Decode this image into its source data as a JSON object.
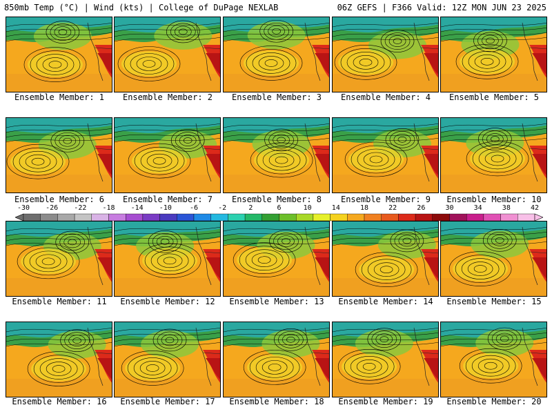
{
  "header": {
    "left": "850mb Temp (°C) | Wind (kts) | College of DuPage NEXLAB",
    "right": "06Z GEFS | F366 Valid: 12Z MON JUN 23 2025"
  },
  "members": [
    {
      "label": "Ensemble Member: 1"
    },
    {
      "label": "Ensemble Member: 2"
    },
    {
      "label": "Ensemble Member: 3"
    },
    {
      "label": "Ensemble Member: 4"
    },
    {
      "label": "Ensemble Member: 5"
    },
    {
      "label": "Ensemble Member: 6"
    },
    {
      "label": "Ensemble Member: 7"
    },
    {
      "label": "Ensemble Member: 8"
    },
    {
      "label": "Ensemble Member: 9"
    },
    {
      "label": "Ensemble Member: 10"
    },
    {
      "label": "Ensemble Member: 11"
    },
    {
      "label": "Ensemble Member: 12"
    },
    {
      "label": "Ensemble Member: 13"
    },
    {
      "label": "Ensemble Member: 14"
    },
    {
      "label": "Ensemble Member: 15"
    },
    {
      "label": "Ensemble Member: 16"
    },
    {
      "label": "Ensemble Member: 17"
    },
    {
      "label": "Ensemble Member: 18"
    },
    {
      "label": "Ensemble Member: 19"
    },
    {
      "label": "Ensemble Member: 20"
    }
  ],
  "colorbar": {
    "labels": [
      "-30",
      "-26",
      "-22",
      "-18",
      "-14",
      "-10",
      "-6",
      "-2",
      "2",
      "6",
      "10",
      "14",
      "18",
      "22",
      "26",
      "30",
      "34",
      "38",
      "42"
    ],
    "colors": [
      "#6e6e6e",
      "#8c8c8c",
      "#a8a8a8",
      "#c4c4c4",
      "#d9b3e6",
      "#c77de0",
      "#a64dd1",
      "#7a3cc4",
      "#4a3bbf",
      "#2a55d6",
      "#1f8ae6",
      "#23b8e0",
      "#2cd1b0",
      "#24b868",
      "#34a034",
      "#6cbf2a",
      "#a8d828",
      "#e6f02a",
      "#f5d21e",
      "#f5a81e",
      "#f08020",
      "#e85a1e",
      "#dc2a1a",
      "#b81414",
      "#8c0a0a",
      "#a0125a",
      "#c81e8c",
      "#e050b4",
      "#f090d2",
      "#f8c0e8"
    ]
  },
  "map_colors": {
    "cold": "#2aa8a0",
    "cool": "#3aa048",
    "mild": "#8cc83c",
    "warm": "#f0d228",
    "hot": "#f0a020",
    "ocean": "#f5a81e",
    "heat": "#dc2a1a",
    "contour": "#000000"
  }
}
